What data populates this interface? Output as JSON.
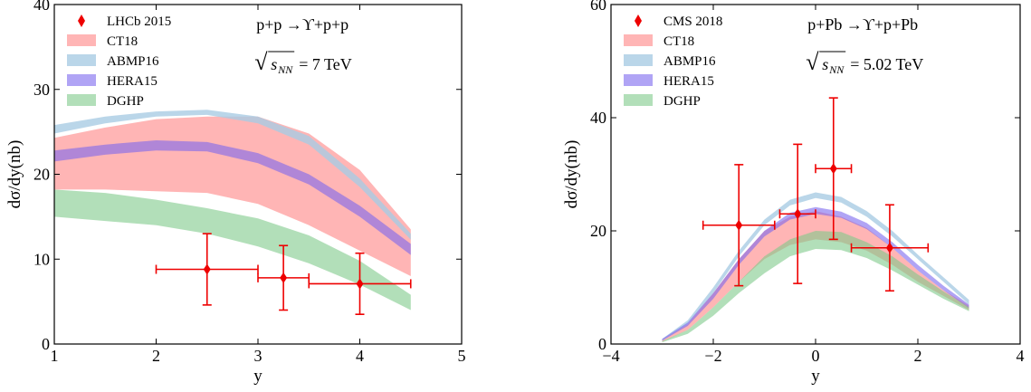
{
  "chart_data": [
    {
      "type": "area",
      "xlabel": "y",
      "ylabel": "dσ/dy(nb)",
      "xlim": [
        1,
        5
      ],
      "ylim": [
        0,
        40
      ],
      "xticks": [
        "1",
        "2",
        "3",
        "4",
        "5"
      ],
      "yticks": [
        "0",
        "10",
        "20",
        "30",
        "40"
      ],
      "process": "p+p →ϒ+p+p",
      "energy": {
        "prefix": "√",
        "symbol": "s",
        "subscript": "NN",
        "value": "= 7 TeV"
      },
      "legend_position": "top-left",
      "bands": [
        {
          "name": "CT18",
          "color": "#ff9c9c",
          "opacity": 0.75,
          "x": [
            1.0,
            1.5,
            2.0,
            2.5,
            3.0,
            3.5,
            4.0,
            4.5
          ],
          "low": [
            18.2,
            18.2,
            18.0,
            17.8,
            16.5,
            14.0,
            11.0,
            8.0
          ],
          "high": [
            24.3,
            25.5,
            26.5,
            26.8,
            26.8,
            24.8,
            20.5,
            13.5
          ]
        },
        {
          "name": "ABMP16",
          "color": "#a9cce3",
          "opacity": 0.8,
          "x": [
            1.0,
            1.5,
            2.0,
            2.5,
            3.0,
            3.5,
            4.0,
            4.5
          ],
          "low": [
            24.8,
            26.0,
            26.8,
            27.0,
            26.0,
            23.5,
            18.5,
            12.3
          ],
          "high": [
            25.8,
            26.8,
            27.4,
            27.6,
            26.8,
            24.5,
            19.5,
            13.0
          ]
        },
        {
          "name": "HERA15",
          "color": "#7b68ee",
          "opacity": 0.6,
          "x": [
            1.0,
            1.5,
            2.0,
            2.5,
            3.0,
            3.5,
            4.0,
            4.5
          ],
          "low": [
            21.5,
            22.3,
            22.8,
            22.7,
            21.3,
            18.8,
            15.0,
            10.5
          ],
          "high": [
            22.8,
            23.5,
            24.0,
            23.8,
            22.5,
            20.0,
            16.3,
            11.8
          ]
        },
        {
          "name": "DGHP",
          "color": "#7fc98a",
          "opacity": 0.6,
          "x": [
            1.0,
            1.5,
            2.0,
            2.5,
            3.0,
            3.5,
            4.0,
            4.5
          ],
          "low": [
            15.0,
            14.5,
            14.0,
            13.0,
            11.5,
            9.5,
            7.0,
            4.0
          ],
          "high": [
            18.2,
            17.8,
            17.0,
            16.0,
            14.8,
            12.8,
            9.8,
            5.8
          ]
        }
      ],
      "data_series": {
        "name": "LHCb 2015",
        "color": "#ee0000",
        "points": [
          {
            "x": 2.5,
            "y": 8.8,
            "xerr": [
              0.5,
              0.5
            ],
            "yerr": [
              4.2,
              4.2
            ]
          },
          {
            "x": 3.25,
            "y": 7.8,
            "xerr": [
              0.25,
              0.25
            ],
            "yerr": [
              3.8,
              3.8
            ]
          },
          {
            "x": 4.0,
            "y": 7.1,
            "xerr": [
              0.5,
              0.5
            ],
            "yerr": [
              3.6,
              3.6
            ]
          }
        ]
      }
    },
    {
      "type": "area",
      "xlabel": "y",
      "ylabel": "dσ/dy(nb)",
      "xlim": [
        -4,
        4
      ],
      "ylim": [
        0,
        60
      ],
      "xticks": [
        "−4",
        "−2",
        "0",
        "2",
        "4"
      ],
      "yticks": [
        "0",
        "20",
        "40",
        "60"
      ],
      "process": "p+Pb →ϒ+p+Pb",
      "energy": {
        "prefix": "√",
        "symbol": "s",
        "subscript": "NN",
        "value": "= 5.02 TeV"
      },
      "legend_position": "top-left",
      "bands": [
        {
          "name": "CT18",
          "color": "#ff9c9c",
          "opacity": 0.75,
          "x": [
            -3.0,
            -2.5,
            -2.0,
            -1.5,
            -1.0,
            -0.5,
            0.0,
            0.5,
            1.0,
            1.5,
            2.0,
            2.5,
            3.0
          ],
          "low": [
            0.4,
            2.5,
            6.5,
            11.0,
            15.0,
            17.5,
            18.5,
            18.0,
            16.5,
            14.0,
            11.0,
            8.5,
            6.0
          ],
          "high": [
            0.8,
            3.5,
            9.0,
            15.0,
            20.0,
            22.5,
            23.5,
            22.5,
            20.5,
            17.0,
            13.0,
            9.5,
            6.8
          ]
        },
        {
          "name": "ABMP16",
          "color": "#a9cce3",
          "opacity": 0.8,
          "x": [
            -3.0,
            -2.5,
            -2.0,
            -1.5,
            -1.0,
            -0.5,
            0.0,
            0.5,
            1.0,
            1.5,
            2.0,
            2.5,
            3.0
          ],
          "low": [
            0.6,
            3.5,
            9.0,
            15.5,
            21.0,
            24.5,
            25.8,
            25.0,
            22.5,
            19.0,
            15.0,
            11.0,
            7.0
          ],
          "high": [
            0.9,
            4.2,
            10.0,
            16.5,
            22.0,
            25.5,
            26.8,
            26.0,
            23.5,
            20.0,
            15.8,
            11.8,
            7.8
          ]
        },
        {
          "name": "HERA15",
          "color": "#7b68ee",
          "opacity": 0.6,
          "x": [
            -3.0,
            -2.5,
            -2.0,
            -1.5,
            -1.0,
            -0.5,
            0.0,
            0.5,
            1.0,
            1.5,
            2.0,
            2.5,
            3.0
          ],
          "low": [
            0.6,
            3.2,
            8.0,
            14.0,
            19.0,
            22.0,
            23.0,
            22.3,
            20.3,
            17.0,
            13.0,
            9.5,
            6.3
          ],
          "high": [
            0.9,
            3.8,
            9.0,
            15.0,
            20.0,
            23.2,
            24.2,
            23.4,
            21.4,
            18.0,
            14.0,
            10.3,
            7.0
          ]
        },
        {
          "name": "DGHP",
          "color": "#7fc98a",
          "opacity": 0.6,
          "x": [
            -3.0,
            -2.5,
            -2.0,
            -1.5,
            -1.0,
            -0.5,
            0.0,
            0.5,
            1.0,
            1.5,
            2.0,
            2.5,
            3.0
          ],
          "low": [
            0.3,
            1.8,
            5.0,
            9.0,
            12.5,
            15.5,
            16.8,
            16.6,
            15.2,
            13.0,
            10.5,
            8.0,
            5.8
          ],
          "high": [
            0.5,
            2.5,
            6.5,
            11.0,
            15.5,
            18.5,
            20.0,
            19.8,
            18.0,
            15.5,
            12.3,
            9.3,
            6.5
          ]
        }
      ],
      "data_series": {
        "name": "CMS 2018",
        "color": "#ee0000",
        "points": [
          {
            "x": -1.5,
            "y": 21.0,
            "xerr": [
              0.7,
              0.7
            ],
            "yerr": [
              10.7,
              10.7
            ]
          },
          {
            "x": -0.35,
            "y": 23.0,
            "xerr": [
              0.35,
              0.35
            ],
            "yerr": [
              12.3,
              12.3
            ]
          },
          {
            "x": 0.35,
            "y": 31.0,
            "xerr": [
              0.35,
              0.35
            ],
            "yerr": [
              12.5,
              12.5
            ]
          },
          {
            "x": 1.45,
            "y": 17.0,
            "xerr": [
              0.75,
              0.75
            ],
            "yerr": [
              7.6,
              7.6
            ]
          }
        ]
      }
    }
  ]
}
